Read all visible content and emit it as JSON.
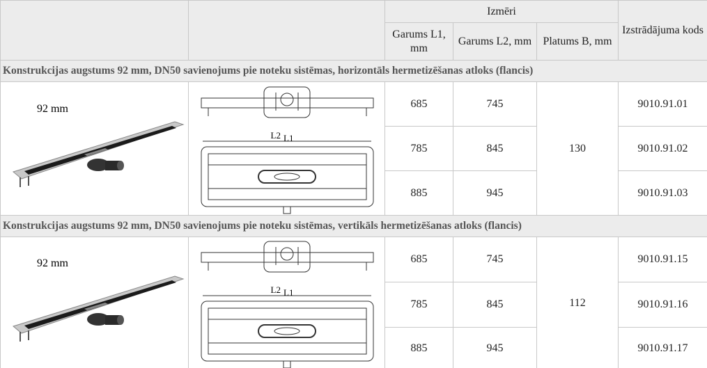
{
  "table": {
    "header": {
      "group": "Izmēri",
      "code": "Izstrādājuma kods",
      "columns": [
        "Garums L1, mm",
        "Garums L2, mm",
        "Platums B, mm"
      ]
    },
    "sections": [
      {
        "title": "Konstrukcijas augstums 92 mm, DN50 savienojums pie noteku sistēmas, horizontāls hermetizēšanas atloks (flancis)",
        "height_label": "92 mm",
        "drawing_labels": [
          "L2",
          "L1"
        ],
        "width_b": 130,
        "rows": [
          [
            685,
            745,
            "9010.91.01"
          ],
          [
            785,
            845,
            "9010.91.02"
          ],
          [
            885,
            945,
            "9010.91.03"
          ]
        ]
      },
      {
        "title": "Konstrukcijas augstums 92 mm, DN50 savienojums pie noteku sistēmas, vertikāls hermetizēšanas atloks (flancis)",
        "height_label": "92 mm",
        "drawing_labels": [
          "L2",
          "L1"
        ],
        "width_b": 112,
        "rows": [
          [
            685,
            745,
            "9010.91.15"
          ],
          [
            785,
            845,
            "9010.91.16"
          ],
          [
            885,
            945,
            "9010.91.17"
          ]
        ]
      }
    ]
  }
}
